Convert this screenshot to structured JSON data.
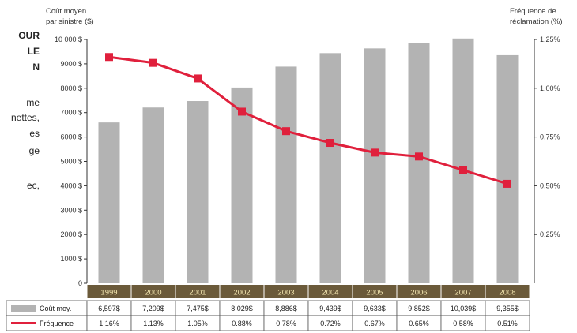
{
  "side_text": [
    "OUR",
    "LE",
    "N",
    "me",
    "nettes,",
    "es",
    "ge",
    "ec,"
  ],
  "chart_data": {
    "type": "bar+line",
    "categories": [
      "1999",
      "2000",
      "2001",
      "2002",
      "2003",
      "2004",
      "2005",
      "2006",
      "2007",
      "2008"
    ],
    "left_axis": {
      "title_lines": [
        "Coût moyen",
        "par sinistre ($)"
      ],
      "range": [
        0,
        10000
      ],
      "ticks": [
        0,
        1000,
        2000,
        3000,
        4000,
        5000,
        6000,
        7000,
        8000,
        9000,
        10000
      ],
      "tick_labels": [
        "0",
        "1000 $",
        "2000 $",
        "3000 $",
        "4000 $",
        "5000 $",
        "6000 $",
        "7000 $",
        "8000 $",
        "9000 $",
        "10 000 $"
      ]
    },
    "right_axis": {
      "title_lines": [
        "Fréquence de",
        "réclamation (%)"
      ],
      "range": [
        0,
        1.25
      ],
      "ticks": [
        0.25,
        0.5,
        0.75,
        1.0,
        1.25
      ],
      "tick_labels": [
        "0,25%",
        "0,50%",
        "0,75%",
        "1,00%",
        "1,25%"
      ]
    },
    "series": [
      {
        "name": "Coût moy.",
        "type": "bar",
        "axis": "left",
        "color": "#b3b3b3",
        "values": [
          6597,
          7209,
          7475,
          8029,
          8886,
          9439,
          9633,
          9852,
          10039,
          9355
        ],
        "table_labels": [
          "6,597$",
          "7,209$",
          "7,475$",
          "8,029$",
          "8,886$",
          "9,439$",
          "9,633$",
          "9,852$",
          "10,039$",
          "9,355$"
        ]
      },
      {
        "name": "Fréquence",
        "type": "line",
        "axis": "right",
        "color": "#e0203c",
        "values": [
          1.16,
          1.13,
          1.05,
          0.88,
          0.78,
          0.72,
          0.67,
          0.65,
          0.58,
          0.51
        ],
        "table_labels": [
          "1.16%",
          "1.13%",
          "1.05%",
          "0.88%",
          "0.78%",
          "0.72%",
          "0.67%",
          "0.65%",
          "0.58%",
          "0.51%"
        ]
      }
    ],
    "year_band_color": "#6b5a3a",
    "grid": false
  }
}
